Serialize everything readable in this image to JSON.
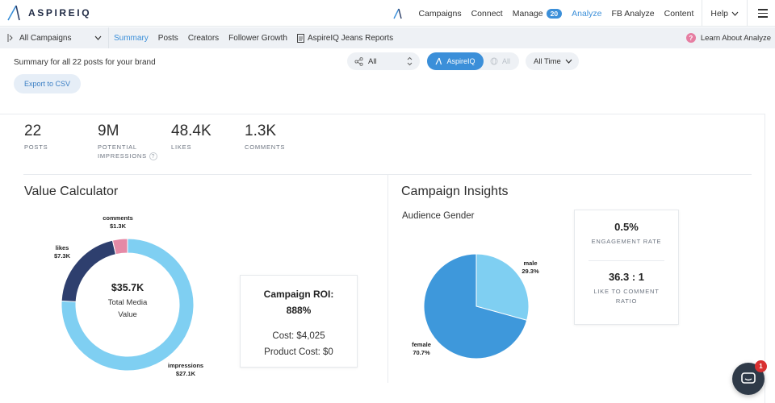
{
  "brand": {
    "name": "ASPIREIQ"
  },
  "topnav": {
    "items": [
      "Campaigns",
      "Connect",
      "Manage",
      "Analyze",
      "FB Analyze",
      "Content",
      "Help"
    ],
    "manage_badge": "20",
    "active": "Analyze"
  },
  "subnav": {
    "campaign_select": "All Campaigns",
    "items": [
      "Summary",
      "Posts",
      "Creators",
      "Follower Growth",
      "AspireIQ Jeans Reports"
    ],
    "learn": "Learn About Analyze",
    "learn_icon": "?"
  },
  "filters": {
    "summary_text": "Summary for all 22 posts for your brand",
    "export_label": "Export to CSV",
    "network_value": "All",
    "toggle_on": "AspireIQ",
    "toggle_off": "All",
    "time_value": "All Time"
  },
  "stats": [
    {
      "value": "22",
      "label": "POSTS"
    },
    {
      "value": "9M",
      "label_line1": "POTENTIAL",
      "label_line2": "IMPRESSIONS",
      "help": "?"
    },
    {
      "value": "48.4K",
      "label": "LIKES"
    },
    {
      "value": "1.3K",
      "label": "COMMENTS"
    }
  ],
  "value_calculator": {
    "title": "Value Calculator",
    "center_value": "$35.7K",
    "center_label_1": "Total Media",
    "center_label_2": "Value",
    "labels": {
      "comments": "comments",
      "comments_value": "$1.3K",
      "likes": "likes",
      "likes_value": "$7.3K",
      "impressions": "impressions",
      "impressions_value": "$27.1K"
    }
  },
  "roi": {
    "title_line1": "Campaign ROI:",
    "title_line2": "888%",
    "cost": "Cost: $4,025",
    "product_cost": "Product Cost: $0"
  },
  "campaign_insights": {
    "title": "Campaign Insights",
    "gender_title": "Audience Gender",
    "male_label": "male",
    "male_value": "29.3%",
    "female_label": "female",
    "female_value": "70.7%",
    "engagement_value": "0.5%",
    "engagement_label": "ENGAGEMENT RATE",
    "ratio_value": "36.3 : 1",
    "ratio_label_1": "LIKE TO COMMENT",
    "ratio_label_2": "RATIO"
  },
  "chat": {
    "count": "1"
  },
  "chart_data": [
    {
      "type": "pie",
      "title": "",
      "categories": [
        "impressions",
        "likes",
        "comments"
      ],
      "values": [
        27.1,
        7.3,
        1.3
      ],
      "unit": "$K",
      "colors": [
        "#7fcff2",
        "#2e3f6e",
        "#e58aa6"
      ],
      "donut": true
    },
    {
      "type": "pie",
      "title": "Audience Gender",
      "categories": [
        "male",
        "female"
      ],
      "values": [
        29.3,
        70.7
      ],
      "unit": "%",
      "colors": [
        "#7fcff2",
        "#3e98db"
      ]
    }
  ]
}
